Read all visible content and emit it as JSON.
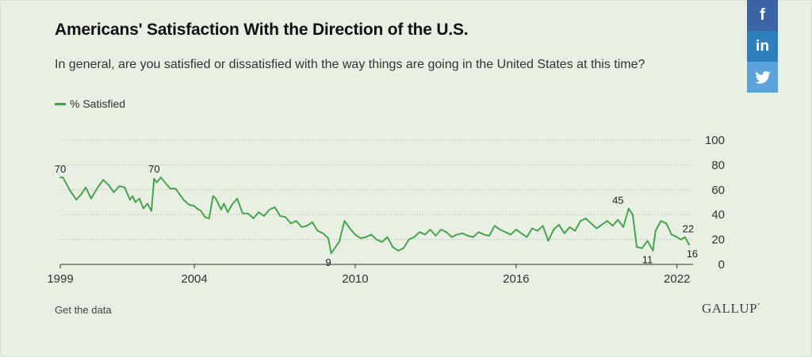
{
  "title": "Americans' Satisfaction With the Direction of the U.S.",
  "subtitle": "In general, are you satisfied or dissatisfied with the way things are going in the United States at this time?",
  "share": {
    "facebook": "f",
    "linkedin": "in",
    "twitter": "twitter-icon"
  },
  "footer": {
    "get_data": "Get the data",
    "brand": "GALLUP",
    "brand_mark": "°"
  },
  "colors": {
    "series": "#4aa250",
    "background": "#e7f0e3",
    "axis": "#333333",
    "grid": "#a9b8a4"
  },
  "chart_data": {
    "type": "line",
    "title": "Americans' Satisfaction With the Direction of the U.S.",
    "xlabel": "",
    "ylabel": "",
    "xlim": [
      1999,
      2022.6
    ],
    "ylim": [
      0,
      100
    ],
    "yticks": [
      0,
      20,
      40,
      60,
      80,
      100
    ],
    "xticks": [
      1999,
      2004,
      2010,
      2016,
      2022
    ],
    "grid": "horizontal",
    "legend_position": "top-left",
    "series": [
      {
        "name": "% Satisfied",
        "color": "#4aa250",
        "x": [
          1999.0,
          1999.1,
          1999.35,
          1999.6,
          1999.8,
          1999.95,
          2000.15,
          2000.4,
          2000.6,
          2000.8,
          2001.0,
          2001.2,
          2001.4,
          2001.5,
          2001.6,
          2001.7,
          2001.8,
          2001.95,
          2002.1,
          2002.25,
          2002.4,
          2002.5,
          2002.6,
          2002.75,
          2002.9,
          2003.1,
          2003.3,
          2003.6,
          2003.8,
          2004.0,
          2004.1,
          2004.25,
          2004.4,
          2004.55,
          2004.7,
          2004.8,
          2005.0,
          2005.1,
          2005.25,
          2005.4,
          2005.6,
          2005.8,
          2006.0,
          2006.2,
          2006.4,
          2006.6,
          2006.8,
          2007.0,
          2007.2,
          2007.4,
          2007.6,
          2007.8,
          2008.0,
          2008.2,
          2008.4,
          2008.6,
          2008.8,
          2009.0,
          2009.1,
          2009.2,
          2009.4,
          2009.6,
          2009.8,
          2010.0,
          2010.2,
          2010.4,
          2010.6,
          2010.8,
          2011.0,
          2011.2,
          2011.4,
          2011.6,
          2011.8,
          2012.0,
          2012.2,
          2012.4,
          2012.6,
          2012.8,
          2013.0,
          2013.2,
          2013.4,
          2013.6,
          2013.8,
          2014.0,
          2014.2,
          2014.4,
          2014.6,
          2014.8,
          2015.0,
          2015.2,
          2015.4,
          2015.6,
          2015.8,
          2016.0,
          2016.2,
          2016.4,
          2016.6,
          2016.8,
          2017.0,
          2017.2,
          2017.4,
          2017.6,
          2017.8,
          2018.0,
          2018.2,
          2018.4,
          2018.6,
          2018.8,
          2019.0,
          2019.2,
          2019.4,
          2019.6,
          2019.8,
          2020.0,
          2020.2,
          2020.35,
          2020.5,
          2020.7,
          2020.9,
          2021.1,
          2021.2,
          2021.4,
          2021.6,
          2021.8,
          2022.0,
          2022.15,
          2022.3,
          2022.45
        ],
        "values": [
          70,
          70,
          60,
          52,
          57,
          62,
          53,
          62,
          68,
          64,
          58,
          63,
          62,
          57,
          52,
          55,
          50,
          53,
          45,
          49,
          43,
          69,
          66,
          70,
          66,
          61,
          61,
          52,
          48,
          47,
          45,
          43,
          38,
          37,
          55,
          53,
          44,
          49,
          42,
          48,
          53,
          41,
          41,
          37,
          42,
          39,
          44,
          46,
          39,
          38,
          33,
          35,
          30,
          31,
          34,
          27,
          25,
          21,
          9,
          12,
          18,
          35,
          29,
          24,
          21,
          22,
          24,
          20,
          18,
          22,
          14,
          11,
          13,
          20,
          22,
          26,
          24,
          28,
          23,
          28,
          26,
          22,
          24,
          25,
          23,
          22,
          26,
          24,
          23,
          31,
          28,
          26,
          24,
          28,
          25,
          22,
          29,
          27,
          31,
          19,
          28,
          32,
          25,
          30,
          27,
          35,
          37,
          33,
          29,
          32,
          35,
          31,
          36,
          30,
          45,
          40,
          14,
          13,
          19,
          11,
          27,
          35,
          33,
          24,
          22,
          20,
          22,
          16
        ]
      }
    ],
    "annotations": [
      {
        "x": 1999.0,
        "y": 70,
        "label": "70"
      },
      {
        "x": 2002.5,
        "y": 70,
        "label": "70"
      },
      {
        "x": 2009.0,
        "y": 9,
        "label": "9"
      },
      {
        "x": 2019.8,
        "y": 45,
        "label": "45"
      },
      {
        "x": 2020.9,
        "y": 11,
        "label": "11"
      },
      {
        "x": 2022.3,
        "y": 22,
        "label": "22"
      },
      {
        "x": 2022.45,
        "y": 16,
        "label": "16"
      }
    ]
  }
}
